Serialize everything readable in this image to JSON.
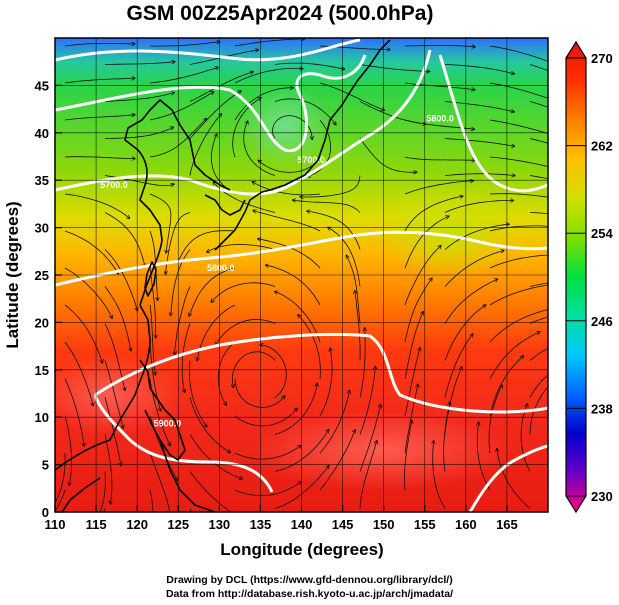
{
  "title": "GSM 00Z25Apr2024 (500.0hPa)",
  "map": {
    "projection": "cylindrical",
    "lon_range": [
      110,
      170
    ],
    "lat_range": [
      0,
      50
    ],
    "xlabel": "Longitude (degrees)",
    "ylabel": "Latitude  (degrees)",
    "x_ticks": [
      "110",
      "115",
      "120",
      "125",
      "130",
      "135",
      "140",
      "145",
      "150",
      "155",
      "160",
      "165"
    ],
    "y_ticks": [
      "0",
      "5",
      "10",
      "15",
      "20",
      "25",
      "30",
      "35",
      "40",
      "45"
    ],
    "grid": true,
    "contour_color": "#ffffff",
    "coastline_color": "#000000",
    "contour_labels": [
      {
        "text": "5700.0",
        "lon": 115.5,
        "lat": 34.2
      },
      {
        "text": "5700.0",
        "lon": 139.5,
        "lat": 36.8
      },
      {
        "text": "5800.0",
        "lon": 155.2,
        "lat": 41.2
      },
      {
        "text": "5800.0",
        "lon": 128.5,
        "lat": 25.4
      },
      {
        "text": "5900.0",
        "lon": 122.0,
        "lat": 9.0
      }
    ]
  },
  "colorbar": {
    "ticks": [
      "270",
      "262",
      "254",
      "246",
      "238",
      "230"
    ],
    "min": 230,
    "max": 270,
    "colors": [
      "#ff0080",
      "#6a00c8",
      "#0000cc",
      "#0066ff",
      "#00c8ff",
      "#00e0a0",
      "#00e040",
      "#80e000",
      "#d0e000",
      "#ffc000",
      "#ff8000",
      "#ff3000",
      "#e81010"
    ]
  },
  "credits": [
    "Drawing by DCL (https://www.gfd-dennou.org/library/dcl/)",
    "Data from http://database.rish.kyoto-u.ac.jp/arch/jmadata/"
  ]
}
